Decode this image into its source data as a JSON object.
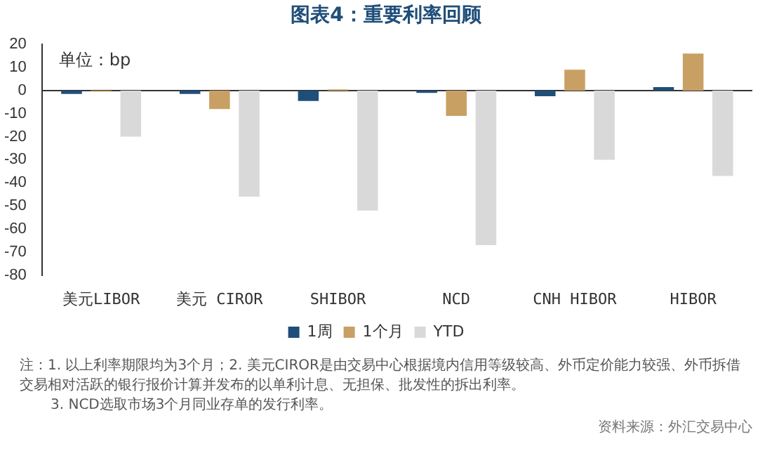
{
  "chart_data": {
    "type": "bar",
    "title": "图表4：重要利率回顾",
    "categories": [
      "美元LIBOR",
      "美元 CIROR",
      "SHIBOR",
      "NCD",
      "CNH HIBOR",
      "HIBOR"
    ],
    "series": [
      {
        "name": "1周",
        "color": "#1f4e79",
        "values": [
          -1.5,
          -1.5,
          -4.5,
          -1,
          -2.5,
          1.5
        ]
      },
      {
        "name": "1个月",
        "color": "#c9a063",
        "values": [
          -0.5,
          -8,
          0.5,
          -11,
          9,
          16
        ]
      },
      {
        "name": "YTD",
        "color": "#d9d9d9",
        "values": [
          -20,
          -46,
          -52,
          -67,
          -30,
          -37
        ]
      }
    ],
    "ylim": [
      -80,
      20
    ],
    "yticks": [
      -80,
      -70,
      -60,
      -50,
      -40,
      -30,
      -20,
      -10,
      0,
      10,
      20
    ],
    "grid": false,
    "legend": "bottom",
    "ref_lines": [
      {
        "axis": "y",
        "value": 0,
        "color": "#333333"
      }
    ],
    "annotations": [
      "单位：bp",
      "注：1. 以上利率期限均为3个月；2. 美元CIROR是由交易中心根据境内信用等级较高、外币定价能力较强、外币拆借交易相对活跃的银行报价计算并发布的以单利计息、无担保、批发性的拆出利率。",
      "3. NCD选取市场3个月同业存单的发行利率。",
      "资料来源：外汇交易中心"
    ]
  }
}
